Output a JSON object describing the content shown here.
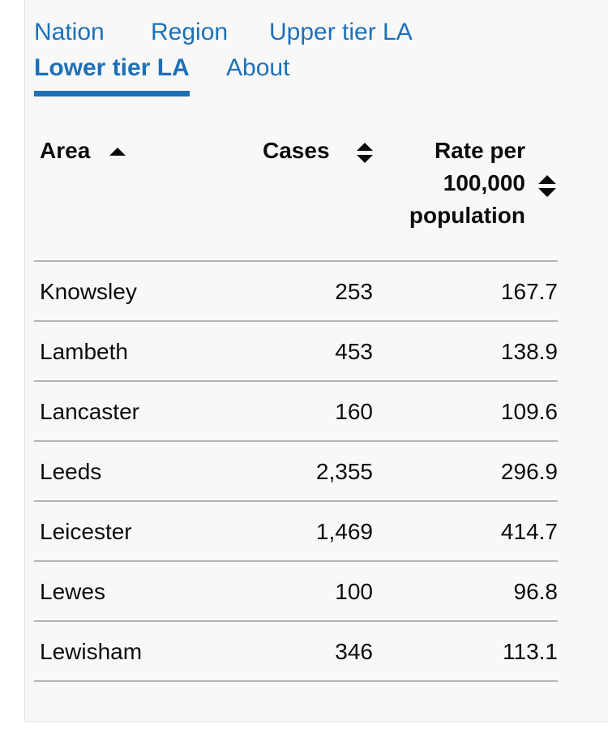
{
  "tabs": [
    {
      "label": "Nation",
      "active": false
    },
    {
      "label": "Region",
      "active": false
    },
    {
      "label": "Upper tier LA",
      "active": false
    },
    {
      "label": "Lower tier LA",
      "active": true
    },
    {
      "label": "About",
      "active": false
    }
  ],
  "table": {
    "headers": {
      "area": "Area",
      "cases": "Cases",
      "rate_line1": "Rate per",
      "rate_line2": "100,000",
      "rate_line3": "population"
    },
    "sort_icons": {
      "area": "sort-ascending-icon",
      "cases": "sort-both-icon",
      "rate": "sort-both-icon"
    },
    "rows": [
      {
        "area": "Knowsley",
        "cases": "253",
        "rate": "167.7"
      },
      {
        "area": "Lambeth",
        "cases": "453",
        "rate": "138.9"
      },
      {
        "area": "Lancaster",
        "cases": "160",
        "rate": "109.6"
      },
      {
        "area": "Leeds",
        "cases": "2,355",
        "rate": "296.9"
      },
      {
        "area": "Leicester",
        "cases": "1,469",
        "rate": "414.7"
      },
      {
        "area": "Lewes",
        "cases": "100",
        "rate": "96.8"
      },
      {
        "area": "Lewisham",
        "cases": "346",
        "rate": "113.1"
      }
    ]
  },
  "colors": {
    "link": "#1d70b8",
    "text": "#0b0c0c",
    "panel_bg": "#f8f8f8",
    "rule": "#b1b4b6"
  }
}
